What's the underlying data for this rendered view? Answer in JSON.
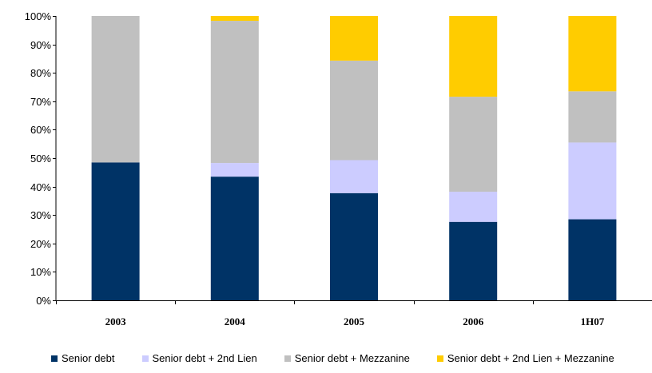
{
  "chart_data": {
    "type": "bar",
    "stacked": true,
    "categories": [
      "2003",
      "2004",
      "2005",
      "2006",
      "1H07"
    ],
    "series": [
      {
        "name": "Senior debt",
        "color": "#003366",
        "values": [
          48.5,
          43.5,
          37.7,
          27.6,
          28.5
        ]
      },
      {
        "name": "Senior debt + 2nd Lien",
        "color": "#ccccff",
        "values": [
          0,
          4.8,
          11.6,
          10.6,
          27.0
        ]
      },
      {
        "name": "Senior debt + Mezzanine",
        "color": "#c0c0c0",
        "values": [
          51.5,
          50.0,
          35.0,
          33.4,
          18.0
        ]
      },
      {
        "name": "Senior debt + 2nd Lien + Mezzanine",
        "color": "#ffcc00",
        "values": [
          0,
          1.7,
          15.7,
          28.4,
          26.5
        ]
      }
    ],
    "yticks": [
      "0%",
      "10%",
      "20%",
      "30%",
      "40%",
      "50%",
      "60%",
      "70%",
      "80%",
      "90%",
      "100%"
    ],
    "ylim": [
      0,
      100
    ],
    "grid": false,
    "legend_position": "bottom",
    "title": "",
    "xlabel": "",
    "ylabel": ""
  }
}
